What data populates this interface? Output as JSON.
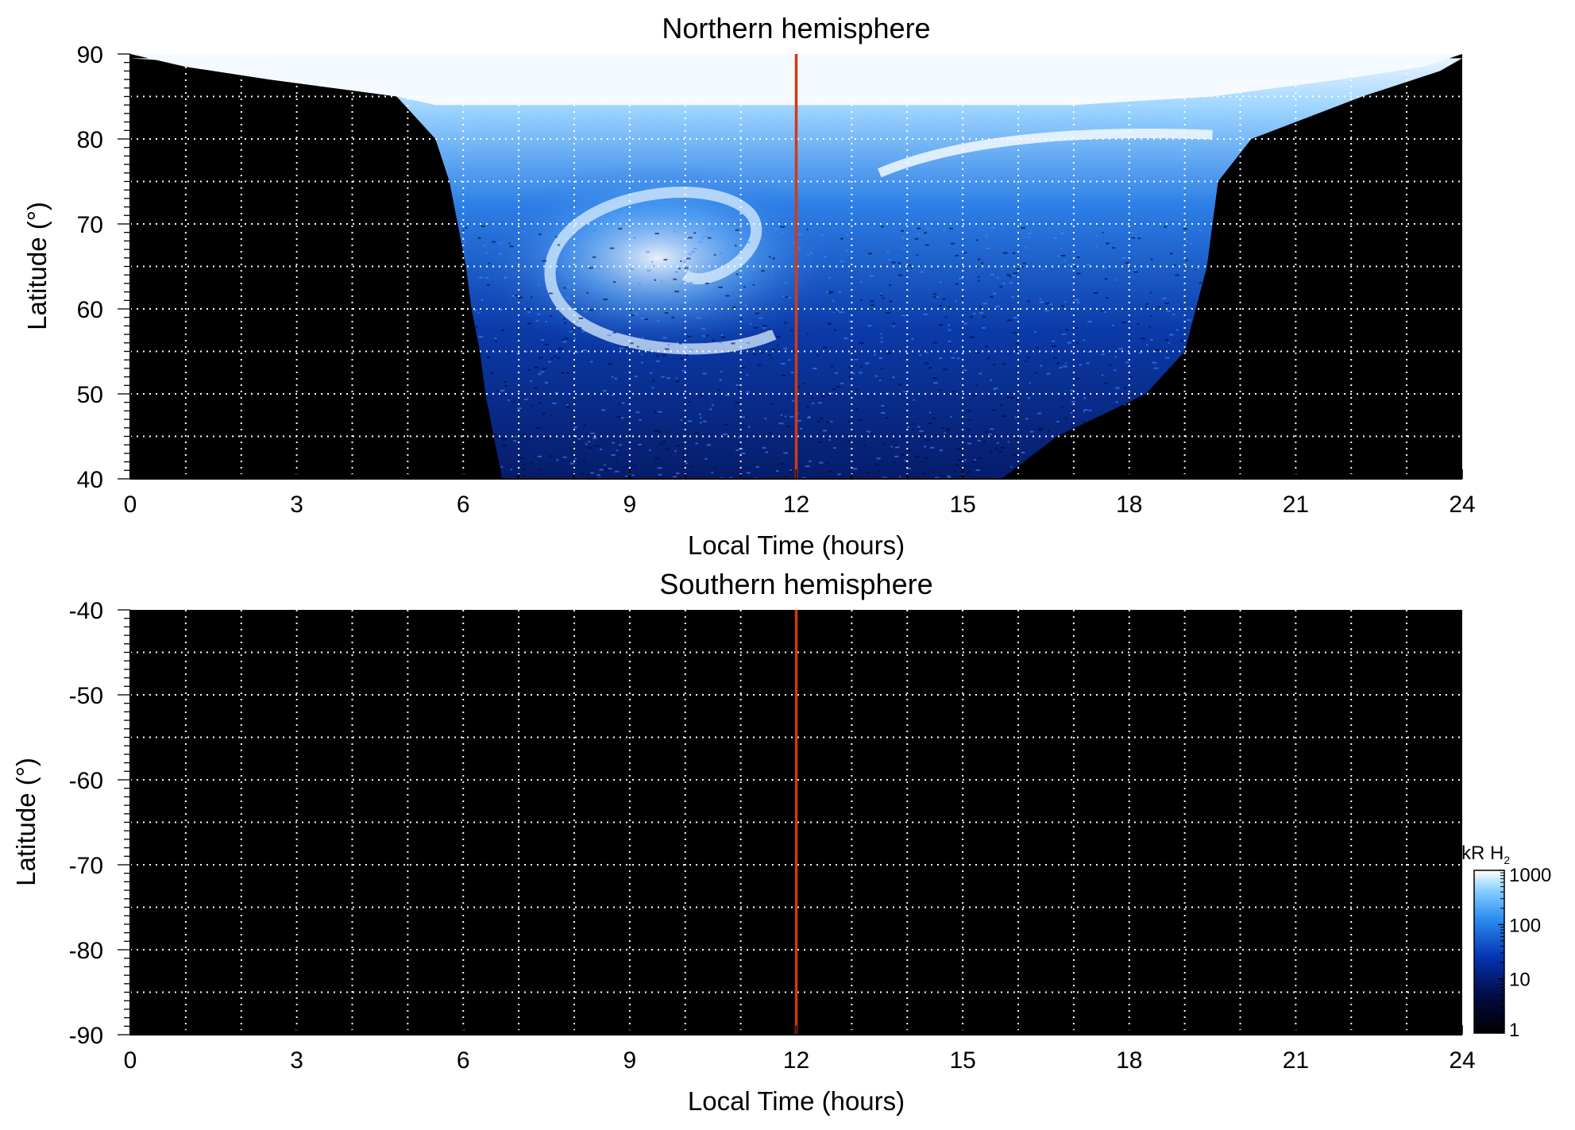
{
  "chart_data": [
    {
      "type": "heatmap",
      "title": "Northern hemisphere",
      "xlabel": "Local Time (hours)",
      "ylabel": "Latitude (°)",
      "xlim": [
        0,
        24
      ],
      "ylim": [
        40,
        90
      ],
      "x_ticks": [
        0,
        3,
        6,
        9,
        12,
        15,
        18,
        21,
        24
      ],
      "y_ticks": [
        40,
        50,
        60,
        70,
        80,
        90
      ],
      "grid": true,
      "reference_line": {
        "x": 12,
        "color": "#d23a14"
      },
      "coverage_boundary": {
        "lat": [
          40,
          45,
          50,
          55,
          60,
          65,
          70,
          75,
          80,
          85,
          88,
          89.5
        ],
        "lt_start": [
          6.7,
          6.55,
          6.4,
          6.3,
          6.15,
          6.05,
          5.9,
          5.75,
          5.5,
          4.8,
          3.5,
          0
        ],
        "lt_end": [
          15.7,
          16.7,
          18.3,
          19.0,
          19.2,
          19.4,
          19.5,
          19.6,
          20.2,
          22.2,
          23.6,
          24
        ]
      },
      "features": [
        {
          "name": "bright polar cap",
          "lat_range": [
            84,
            90
          ],
          "brightness_kR": 1000
        },
        {
          "name": "morning spiral oval",
          "center_lt": 9.5,
          "center_lat": 66,
          "brightness_kR": 500
        },
        {
          "name": "dusk arc",
          "lt_range": [
            13.5,
            19.5
          ],
          "lat": 80.5,
          "brightness_kR": 800
        },
        {
          "name": "background emission",
          "brightness_kR": 10
        }
      ]
    },
    {
      "type": "heatmap",
      "title": "Southern hemisphere",
      "xlabel": "Local Time (hours)",
      "ylabel": "Latitude (°)",
      "xlim": [
        0,
        24
      ],
      "ylim": [
        -90,
        -40
      ],
      "x_ticks": [
        0,
        3,
        6,
        9,
        12,
        15,
        18,
        21,
        24
      ],
      "y_ticks": [
        -40,
        -50,
        -60,
        -70,
        -80,
        -90
      ],
      "grid": true,
      "reference_line": {
        "x": 12,
        "color": "#d23a14"
      },
      "coverage_boundary": null
    }
  ],
  "colorbar": {
    "unit_text": "kR H",
    "unit_subscript": "2",
    "scale": "log",
    "ticks": [
      "1000",
      "100",
      "10",
      "1"
    ],
    "tick_values": [
      1000,
      100,
      10,
      1
    ],
    "colors": [
      "#000000",
      "#020a40",
      "#0634b4",
      "#2a8cf0",
      "#8cd0ff",
      "#ffffff"
    ]
  }
}
